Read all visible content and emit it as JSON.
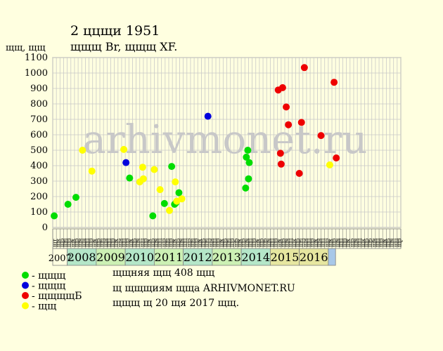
{
  "chart_data": {
    "type": "scatter",
    "title": "2 ццщи 1951",
    "subtitle": "щщщ Br, щщщ XF.",
    "ylabel": "щщ, щщ",
    "ylim": [
      0,
      1100
    ],
    "yticks": [
      0,
      100,
      200,
      300,
      400,
      500,
      600,
      700,
      800,
      900,
      1000,
      1100
    ],
    "grid": true,
    "watermark": "arhivmonet.ru",
    "xlim": [
      0,
      24
    ],
    "slot_labels": [
      "щт",
      "щк",
      "щр",
      "щц",
      "щр",
      "щк",
      "щр",
      "щн",
      "щн",
      "щц",
      "щр",
      "щк",
      "щр",
      "щц",
      "щн",
      "щц",
      "щр",
      "щк",
      "щн",
      "щц",
      "щр",
      "щк",
      "щр",
      "щн",
      "щц",
      "щр",
      "щк",
      "щр",
      "щн",
      "щц",
      "щр",
      "щц",
      "щр",
      "щк",
      "щр",
      "щн",
      "щц",
      "щр",
      "щц",
      "щр",
      "щк",
      "щр",
      "щц",
      "щн",
      "щц",
      "щр",
      "щк",
      "щр",
      "щц",
      "щр",
      "щр",
      "щк",
      "щр",
      "щн",
      "щц",
      "щр",
      "щк",
      "щр",
      "щр",
      "щн",
      "щц",
      "щр",
      "щк",
      "щр",
      "щн",
      "щц",
      "щк",
      "щр",
      "щц",
      "щн",
      "щц",
      "щр",
      "щк",
      "щн",
      "щц",
      "щр",
      "щк",
      "щр",
      "щн",
      "щц",
      "щр",
      "щк",
      "щр",
      "щн",
      "щц",
      "щк",
      "щр",
      "щр",
      "щн",
      "щц",
      "щр",
      "щк",
      "щр",
      "щн",
      "щц",
      "щр"
    ],
    "years": [
      {
        "label": "2007",
        "from": 0,
        "to": 1,
        "color": "#ffffe0"
      },
      {
        "label": "2008",
        "from": 1,
        "to": 3,
        "color": "#b4e6c8"
      },
      {
        "label": "2009",
        "from": 3,
        "to": 5,
        "color": "#ccf0b4"
      },
      {
        "label": "2010",
        "from": 5,
        "to": 7,
        "color": "#b4e6c8"
      },
      {
        "label": "2011",
        "from": 7,
        "to": 9,
        "color": "#ccf0b4"
      },
      {
        "label": "2012",
        "from": 9,
        "to": 11,
        "color": "#b4e6c8"
      },
      {
        "label": "2013",
        "from": 11,
        "to": 13,
        "color": "#ccf0b4"
      },
      {
        "label": "2014",
        "from": 13,
        "to": 15,
        "color": "#b4e6c8"
      },
      {
        "label": "2015",
        "from": 15,
        "to": 17,
        "color": "#e6e6a0"
      },
      {
        "label": "2016",
        "from": 17,
        "to": 19,
        "color": "#e6e6a0"
      },
      {
        "label": "",
        "from": 19,
        "to": 19.5,
        "color": "#a8c8e8"
      }
    ],
    "series": [
      {
        "name": "щщщ",
        "color": "#00dd00",
        "points": [
          {
            "x": 0.1,
            "y": 75
          },
          {
            "x": 1.05,
            "y": 150
          },
          {
            "x": 1.6,
            "y": 195
          },
          {
            "x": 5.3,
            "y": 320
          },
          {
            "x": 6.9,
            "y": 75
          },
          {
            "x": 7.7,
            "y": 155
          },
          {
            "x": 8.2,
            "y": 395
          },
          {
            "x": 8.4,
            "y": 150
          },
          {
            "x": 8.5,
            "y": 160
          },
          {
            "x": 8.7,
            "y": 225
          },
          {
            "x": 13.3,
            "y": 255
          },
          {
            "x": 13.35,
            "y": 455
          },
          {
            "x": 13.45,
            "y": 500
          },
          {
            "x": 13.5,
            "y": 315
          },
          {
            "x": 13.55,
            "y": 420
          }
        ]
      },
      {
        "name": "щщщ",
        "color": "#0000dd",
        "points": [
          {
            "x": 5.05,
            "y": 420
          },
          {
            "x": 10.7,
            "y": 720
          }
        ]
      },
      {
        "name": "щщщщБ",
        "color": "#ee0000",
        "points": [
          {
            "x": 15.55,
            "y": 890
          },
          {
            "x": 15.7,
            "y": 480
          },
          {
            "x": 15.75,
            "y": 410
          },
          {
            "x": 15.85,
            "y": 905
          },
          {
            "x": 16.1,
            "y": 780
          },
          {
            "x": 16.25,
            "y": 665
          },
          {
            "x": 17.0,
            "y": 350
          },
          {
            "x": 17.15,
            "y": 680
          },
          {
            "x": 17.35,
            "y": 1035
          },
          {
            "x": 18.5,
            "y": 595
          },
          {
            "x": 19.4,
            "y": 940
          },
          {
            "x": 19.55,
            "y": 450
          }
        ]
      },
      {
        "name": "щщ",
        "color": "#ffff00",
        "points": [
          {
            "x": 2.05,
            "y": 500
          },
          {
            "x": 2.7,
            "y": 365
          },
          {
            "x": 4.9,
            "y": 505
          },
          {
            "x": 6.0,
            "y": 295
          },
          {
            "x": 6.2,
            "y": 390
          },
          {
            "x": 6.25,
            "y": 315
          },
          {
            "x": 7.0,
            "y": 375
          },
          {
            "x": 7.4,
            "y": 245
          },
          {
            "x": 8.05,
            "y": 110
          },
          {
            "x": 8.45,
            "y": 295
          },
          {
            "x": 8.55,
            "y": 170
          },
          {
            "x": 8.9,
            "y": 185
          },
          {
            "x": 19.1,
            "y": 405
          }
        ]
      }
    ]
  },
  "info": {
    "line1": "щщняя щщ 408 щщ",
    "line2": "щ щщщиям щща ARHIVMONET.RU",
    "line3": "щщщ щ 20 щя 2017 щщ."
  },
  "legend": [
    {
      "label": "- щщщ",
      "color": "#00dd00"
    },
    {
      "label": "- щщщ",
      "color": "#0000dd"
    },
    {
      "label": "- щщщщБ",
      "color": "#ee0000"
    },
    {
      "label": "- щщ",
      "color": "#ffff00"
    }
  ]
}
